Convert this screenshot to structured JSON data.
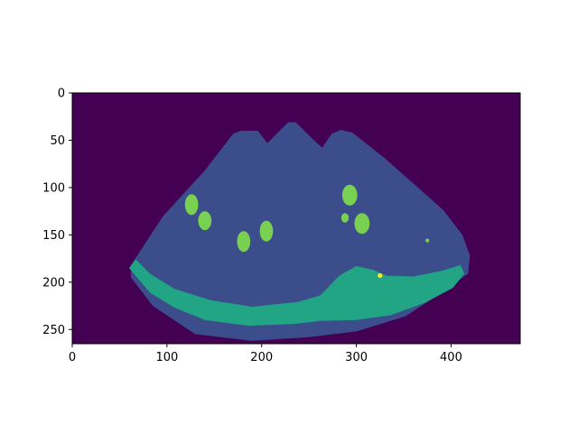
{
  "chart_data": {
    "type": "heatmap",
    "title": "",
    "xlabel": "",
    "ylabel": "",
    "xlim": [
      0,
      473
    ],
    "ylim": [
      265,
      0
    ],
    "x_ticks": [
      0,
      100,
      200,
      300,
      400
    ],
    "y_ticks": [
      0,
      50,
      100,
      150,
      200,
      250
    ],
    "x_tick_labels": [
      "0",
      "100",
      "200",
      "300",
      "400"
    ],
    "y_tick_labels": [
      "0",
      "50",
      "100",
      "150",
      "200",
      "250"
    ],
    "colormap": "viridis",
    "classes": [
      {
        "label": 0,
        "color": "#440154"
      },
      {
        "label": 1,
        "color": "#3b4d8a"
      },
      {
        "label": 2,
        "color": "#21a585"
      },
      {
        "label": 3,
        "color": "#7ad151"
      },
      {
        "label": 4,
        "color": "#fde725"
      }
    ],
    "regions": [
      {
        "name": "background",
        "class": 0
      },
      {
        "name": "fan-region",
        "class": 1,
        "outline": [
          [
            62,
            182
          ],
          [
            96,
            130
          ],
          [
            140,
            82
          ],
          [
            170,
            43
          ],
          [
            178,
            40
          ],
          [
            196,
            40
          ],
          [
            206,
            53
          ],
          [
            228,
            31
          ],
          [
            236,
            31
          ],
          [
            254,
            49
          ],
          [
            264,
            58
          ],
          [
            274,
            43
          ],
          [
            284,
            39
          ],
          [
            296,
            42
          ],
          [
            330,
            69
          ],
          [
            364,
            99
          ],
          [
            392,
            124
          ],
          [
            412,
            150
          ],
          [
            420,
            172
          ],
          [
            418,
            191
          ],
          [
            390,
            211
          ],
          [
            352,
            236
          ],
          [
            300,
            252
          ],
          [
            250,
            258
          ],
          [
            190,
            262
          ],
          [
            130,
            255
          ],
          [
            85,
            225
          ],
          [
            62,
            195
          ]
        ]
      },
      {
        "name": "bottom-band",
        "class": 2,
        "outline": [
          [
            60,
            185
          ],
          [
            67,
            176
          ],
          [
            82,
            191
          ],
          [
            108,
            207
          ],
          [
            146,
            219
          ],
          [
            190,
            226
          ],
          [
            238,
            221
          ],
          [
            262,
            214
          ],
          [
            282,
            193
          ],
          [
            300,
            183
          ],
          [
            318,
            187
          ],
          [
            332,
            193
          ],
          [
            360,
            194
          ],
          [
            390,
            188
          ],
          [
            410,
            182
          ],
          [
            414,
            191
          ],
          [
            402,
            206
          ],
          [
            372,
            222
          ],
          [
            336,
            235
          ],
          [
            300,
            240
          ],
          [
            262,
            241
          ],
          [
            236,
            244
          ],
          [
            186,
            246
          ],
          [
            140,
            240
          ],
          [
            108,
            227
          ],
          [
            82,
            211
          ]
        ]
      },
      {
        "name": "spot-1",
        "class": 3,
        "cx": 126,
        "cy": 118,
        "rx": 7,
        "ry": 11
      },
      {
        "name": "spot-2",
        "class": 3,
        "cx": 140,
        "cy": 135,
        "rx": 7,
        "ry": 10
      },
      {
        "name": "spot-3",
        "class": 3,
        "cx": 181,
        "cy": 157,
        "rx": 7,
        "ry": 11
      },
      {
        "name": "spot-4",
        "class": 3,
        "cx": 205,
        "cy": 146,
        "rx": 7,
        "ry": 11
      },
      {
        "name": "spot-5",
        "class": 3,
        "cx": 293,
        "cy": 108,
        "rx": 8,
        "ry": 11
      },
      {
        "name": "spot-6",
        "class": 3,
        "cx": 306,
        "cy": 138,
        "rx": 8,
        "ry": 11
      },
      {
        "name": "spot-7",
        "class": 3,
        "cx": 288,
        "cy": 132,
        "rx": 4,
        "ry": 5
      },
      {
        "name": "spot-8",
        "class": 3,
        "cx": 375,
        "cy": 156,
        "rx": 2,
        "ry": 2
      },
      {
        "name": "spot-9",
        "class": 4,
        "cx": 325,
        "cy": 193,
        "rx": 2.5,
        "ry": 2.5
      }
    ]
  }
}
